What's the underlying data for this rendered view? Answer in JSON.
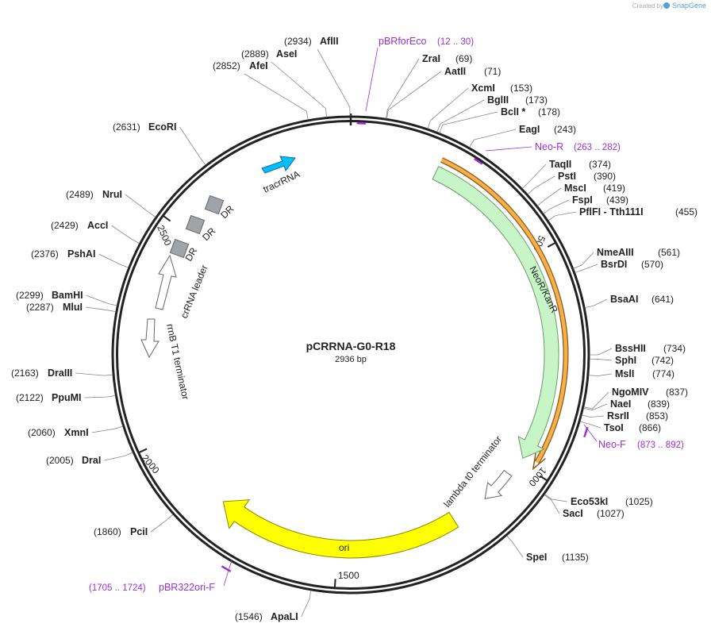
{
  "header": {
    "credit": "Created by",
    "brand": "SnapGene"
  },
  "map": {
    "name": "pCRRNA-G0-R18",
    "length": "2936 bp",
    "ticks": [
      "500",
      "1000",
      "1500",
      "2000",
      "2500"
    ],
    "sites": [
      {
        "name": "AflII",
        "position": "(2934)"
      },
      {
        "name": "AseI",
        "position": "(2889)"
      },
      {
        "name": "AfeI",
        "position": "(2852)"
      },
      {
        "name": "ZraI",
        "position": "(69)"
      },
      {
        "name": "AatII",
        "position": "(71)"
      },
      {
        "name": "XcmI",
        "position": "(153)"
      },
      {
        "name": "BglII",
        "position": "(173)"
      },
      {
        "name": "BclI *",
        "position": "(178)"
      },
      {
        "name": "EagI",
        "position": "(243)"
      },
      {
        "name": "TaqII",
        "position": "(374)"
      },
      {
        "name": "PstI",
        "position": "(390)"
      },
      {
        "name": "MscI",
        "position": "(419)"
      },
      {
        "name": "FspI",
        "position": "(439)"
      },
      {
        "name": "PflFI - Tth111I",
        "position": "(455)"
      },
      {
        "name": "NmeAIII",
        "position": "(561)"
      },
      {
        "name": "BsrDI",
        "position": "(570)"
      },
      {
        "name": "BsaAI",
        "position": "(641)"
      },
      {
        "name": "BssHII",
        "position": "(734)"
      },
      {
        "name": "SphI",
        "position": "(742)"
      },
      {
        "name": "MslI",
        "position": "(774)"
      },
      {
        "name": "NgoMIV",
        "position": "(837)"
      },
      {
        "name": "NaeI",
        "position": "(839)"
      },
      {
        "name": "RsrII",
        "position": "(853)"
      },
      {
        "name": "TsoI",
        "position": "(866)"
      },
      {
        "name": "Eco53kI",
        "position": "(1025)"
      },
      {
        "name": "SacI",
        "position": "(1027)"
      },
      {
        "name": "SpeI",
        "position": "(1135)"
      },
      {
        "name": "ApaLI",
        "position": "(1546)"
      },
      {
        "name": "PciI",
        "position": "(1860)"
      },
      {
        "name": "DraI",
        "position": "(2005)"
      },
      {
        "name": "XmnI",
        "position": "(2060)"
      },
      {
        "name": "PpuMI",
        "position": "(2122)"
      },
      {
        "name": "DraIII",
        "position": "(2163)"
      },
      {
        "name": "MluI",
        "position": "(2287)"
      },
      {
        "name": "BamHI",
        "position": "(2299)"
      },
      {
        "name": "PshAI",
        "position": "(2376)"
      },
      {
        "name": "AccI",
        "position": "(2429)"
      },
      {
        "name": "NruI",
        "position": "(2489)"
      },
      {
        "name": "EcoRI",
        "position": "(2631)"
      }
    ],
    "primers": [
      {
        "name": "pBRforEco",
        "range": "(12 .. 30)"
      },
      {
        "name": "Neo-R",
        "range": "(263 .. 282)"
      },
      {
        "name": "Neo-F",
        "range": "(873 .. 892)"
      },
      {
        "name": "pBR322ori-F",
        "range": "(1705 .. 1724)"
      }
    ],
    "features": [
      {
        "label": "tracrRNA"
      },
      {
        "label": "DR"
      },
      {
        "label": "DR"
      },
      {
        "label": "DR"
      },
      {
        "label": "crRNA leader"
      },
      {
        "label": "rrnB T1 terminator"
      },
      {
        "label": "NeoR/KanR"
      },
      {
        "label": "lambda t0 terminator"
      },
      {
        "label": "ori"
      }
    ]
  }
}
